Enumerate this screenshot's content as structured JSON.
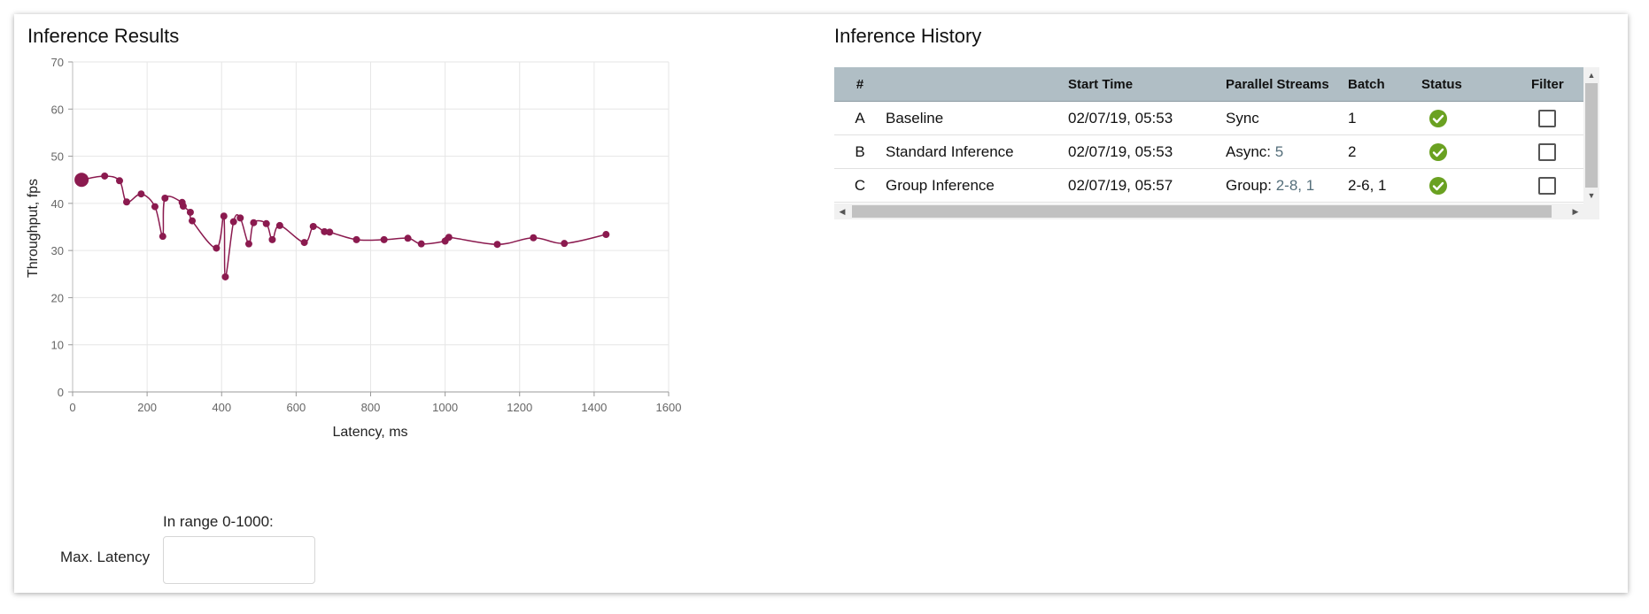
{
  "results_panel": {
    "title": "Inference Results"
  },
  "history_panel": {
    "title": "Inference History"
  },
  "latency_filter": {
    "range_hint": "In range 0-1000:",
    "label": "Max. Latency",
    "value": "",
    "placeholder": ""
  },
  "history_table": {
    "columns": [
      "#",
      "",
      "Start Time",
      "Parallel Streams",
      "Batch",
      "Status",
      "Filter"
    ],
    "rows": [
      {
        "id": "A",
        "name": "Baseline",
        "start_time": "02/07/19, 05:53",
        "streams_label": "Sync",
        "streams_value": "",
        "batch": "1",
        "status": "check-circle-icon",
        "filter_checked": false
      },
      {
        "id": "B",
        "name": "Standard Inference",
        "start_time": "02/07/19, 05:53",
        "streams_label": "Async:",
        "streams_value": "5",
        "batch": "2",
        "status": "check-circle-icon",
        "filter_checked": false
      },
      {
        "id": "C",
        "name": "Group Inference",
        "start_time": "02/07/19, 05:57",
        "streams_label": "Group:",
        "streams_value": "2-8, 1",
        "batch": "2-6, 1",
        "status": "check-circle-icon",
        "filter_checked": false
      }
    ]
  },
  "colors": {
    "series": "#8b1a4f",
    "status_ok": "#6aa121",
    "table_header": "#b0bec5",
    "grid": "#e6e6e6"
  },
  "chart_data": {
    "type": "line",
    "title": "",
    "xlabel": "Latency, ms",
    "ylabel": "Throughput, fps",
    "xlim": [
      0,
      1600
    ],
    "ylim": [
      0,
      70
    ],
    "xticks": [
      0,
      200,
      400,
      600,
      800,
      1000,
      1200,
      1400,
      1600
    ],
    "yticks": [
      0,
      10,
      20,
      30,
      40,
      50,
      60,
      70
    ],
    "grid": true,
    "legend": "none",
    "highlight_point_index": 0,
    "points": [
      [
        24,
        45.0
      ],
      [
        86,
        45.8
      ],
      [
        126,
        44.8
      ],
      [
        145,
        40.3
      ],
      [
        184,
        42.0
      ],
      [
        221,
        39.3
      ],
      [
        242,
        33.0
      ],
      [
        248,
        41.1
      ],
      [
        294,
        40.2
      ],
      [
        297,
        39.4
      ],
      [
        316,
        38.1
      ],
      [
        321,
        36.3
      ],
      [
        386,
        30.5
      ],
      [
        406,
        37.3
      ],
      [
        410,
        24.4
      ],
      [
        432,
        36.1
      ],
      [
        450,
        36.9
      ],
      [
        473,
        31.4
      ],
      [
        486,
        35.9
      ],
      [
        520,
        35.7
      ],
      [
        536,
        32.3
      ],
      [
        556,
        35.3
      ],
      [
        622,
        31.7
      ],
      [
        646,
        35.1
      ],
      [
        676,
        34.0
      ],
      [
        690,
        33.9
      ],
      [
        762,
        32.3
      ],
      [
        836,
        32.3
      ],
      [
        900,
        32.6
      ],
      [
        936,
        31.4
      ],
      [
        1000,
        32.0
      ],
      [
        1010,
        32.8
      ],
      [
        1140,
        31.3
      ],
      [
        1237,
        32.7
      ],
      [
        1320,
        31.5
      ],
      [
        1432,
        33.4
      ]
    ]
  }
}
